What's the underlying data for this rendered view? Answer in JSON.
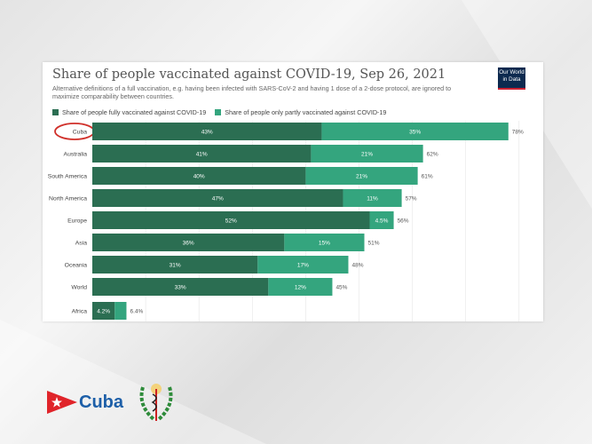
{
  "title": "Share of people vaccinated against COVID-19, Sep 26, 2021",
  "subtitle": "Alternative definitions of a full vaccination, e.g. having been infected with SARS-CoV-2 and having 1 dose of a 2-dose protocol, are ignored to maximize comparability between countries.",
  "logo": "Our World in Data",
  "brand": {
    "label": "Cuba"
  },
  "colors": {
    "full": "#2b6e52",
    "partial": "#34a57e",
    "highlight": "#d0302a"
  },
  "chart_data": {
    "type": "bar",
    "stacked": true,
    "orientation": "horizontal",
    "title": "Share of people vaccinated against COVID-19, Sep 26, 2021",
    "legend_position": "top-left",
    "categories": [
      "Cuba",
      "Australia",
      "South America",
      "North America",
      "Europe",
      "Asia",
      "Oceania",
      "World",
      "Africa"
    ],
    "series": [
      {
        "name": "Share of people fully vaccinated against COVID-19",
        "values": [
          43,
          41,
          40,
          47,
          52,
          36,
          31,
          33,
          4.2
        ],
        "labels": [
          "43%",
          "41%",
          "40%",
          "47%",
          "52%",
          "36%",
          "31%",
          "33%",
          "4.2%"
        ]
      },
      {
        "name": "Share of people only partly vaccinated against COVID-19",
        "values": [
          35,
          21,
          21,
          11,
          4.5,
          15,
          17,
          12,
          2.2
        ],
        "labels": [
          "35%",
          "21%",
          "21%",
          "11%",
          "4.5%",
          "15%",
          "17%",
          "12%",
          ""
        ]
      }
    ],
    "totals": [
      "78%",
      "62%",
      "61%",
      "57%",
      "56%",
      "51%",
      "48%",
      "45%",
      "6.4%"
    ],
    "xlim": [
      0,
      80
    ],
    "highlighted": "Cuba"
  }
}
